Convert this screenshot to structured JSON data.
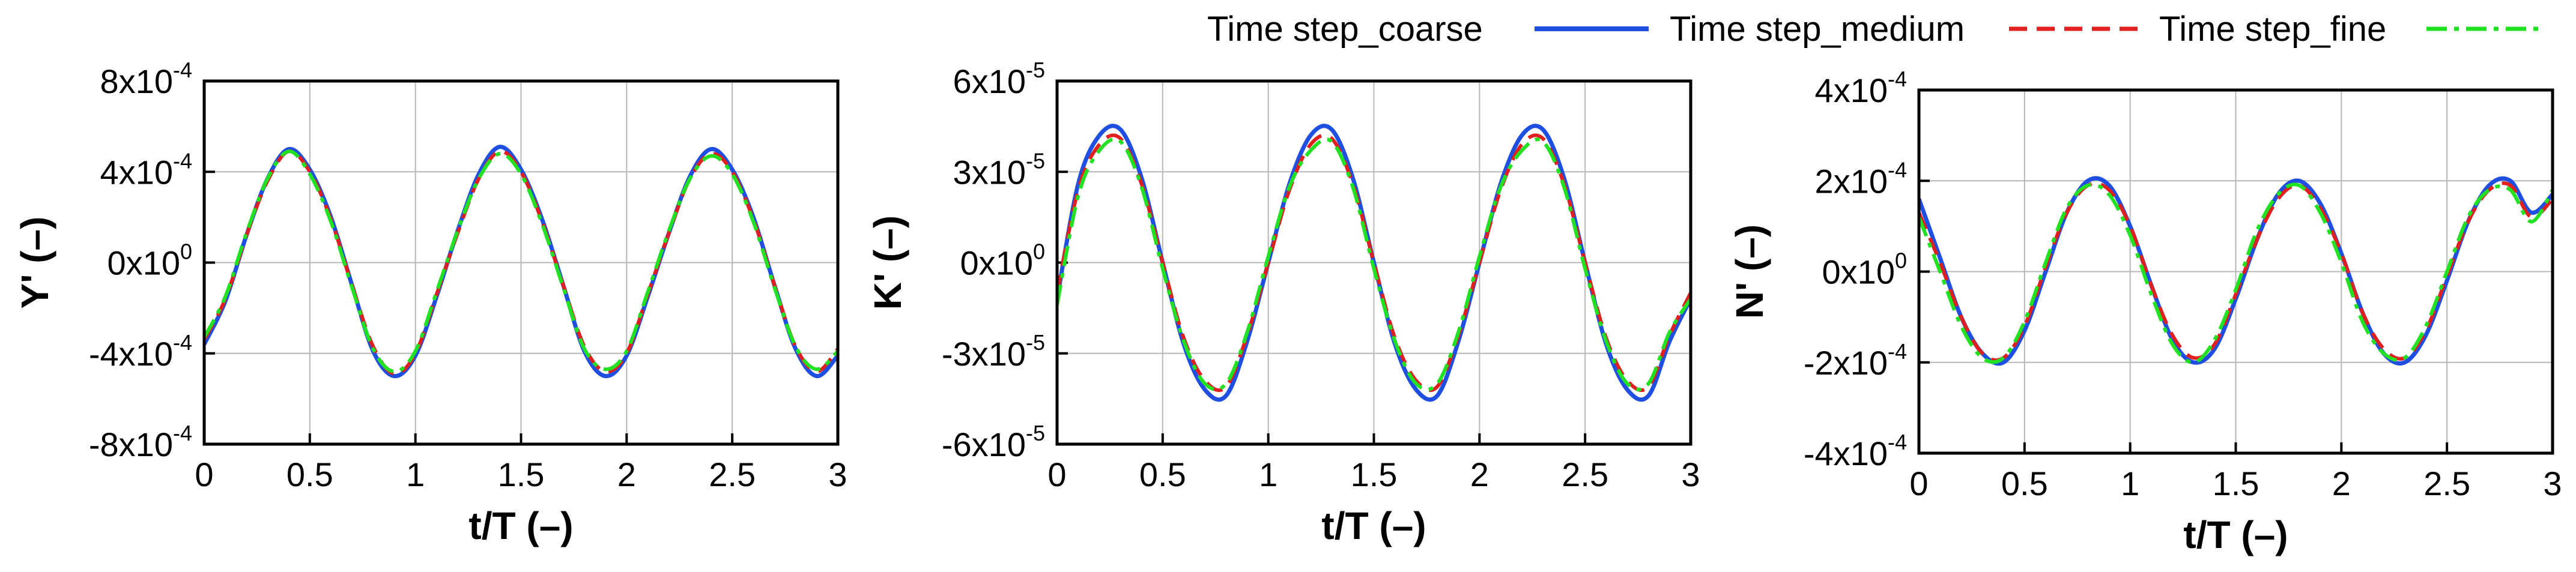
{
  "legend": {
    "placement": "top-right",
    "entries": [
      {
        "name": "Time step_coarse",
        "color": "#1f4fe0",
        "dash": "solid"
      },
      {
        "name": "Time step_medium",
        "color": "#e01f1f",
        "dash": "dashed"
      },
      {
        "name": "Time step_fine",
        "color": "#22e022",
        "dash": "dashdot"
      }
    ]
  },
  "chart_data": [
    {
      "type": "line",
      "xlabel": "t/T (–)",
      "ylabel": "Y' (–)",
      "xlim": [
        0,
        3
      ],
      "ylim": [
        -0.0008,
        0.0008
      ],
      "grid": true,
      "x_ticks": [
        "0",
        "0.5",
        "1",
        "1.5",
        "2",
        "2.5",
        "3"
      ],
      "y_ticks": [
        {
          "mant": "-8x10",
          "exp": "-4"
        },
        {
          "mant": "-4x10",
          "exp": "-4"
        },
        {
          "mant": "0x10",
          "exp": "0"
        },
        {
          "mant": "4x10",
          "exp": "-4"
        },
        {
          "mant": "8x10",
          "exp": "-4"
        }
      ],
      "x": [
        0,
        0.1,
        0.2,
        0.3,
        0.4,
        0.5,
        0.6,
        0.7,
        0.8,
        0.9,
        1.0,
        1.1,
        1.2,
        1.3,
        1.4,
        1.5,
        1.6,
        1.7,
        1.8,
        1.9,
        2.0,
        2.1,
        2.2,
        2.3,
        2.4,
        2.5,
        2.6,
        2.7,
        2.8,
        2.9,
        3.0
      ],
      "series": [
        {
          "name": "Time step_coarse",
          "values": [
            -0.00036,
            -0.00017,
            0.00012,
            0.00037,
            0.0005,
            0.00041,
            0.0002,
            -0.0001,
            -0.00039,
            -0.0005,
            -0.00041,
            -0.00015,
            0.00014,
            0.00039,
            0.00051,
            0.00041,
            0.00019,
            -0.0001,
            -0.00039,
            -0.0005,
            -0.00041,
            -0.00015,
            0.00013,
            0.00038,
            0.0005,
            0.00041,
            0.0002,
            -0.0001,
            -0.00038,
            -0.0005,
            -0.00041
          ]
        },
        {
          "name": "Time step_medium",
          "values": [
            -0.00034,
            -0.00016,
            0.00012,
            0.00036,
            0.00049,
            0.0004,
            0.00019,
            -0.0001,
            -0.00037,
            -0.00049,
            -0.0004,
            -0.00014,
            0.00013,
            0.00037,
            0.00049,
            0.0004,
            0.00018,
            -0.0001,
            -0.00037,
            -0.00048,
            -0.0004,
            -0.00014,
            0.00013,
            0.00037,
            0.00048,
            0.0004,
            0.00019,
            -0.0001,
            -0.00037,
            -0.00048,
            -0.00038
          ]
        },
        {
          "name": "Time step_fine",
          "values": [
            -0.00033,
            -0.00015,
            0.00013,
            0.00037,
            0.00049,
            0.00039,
            0.00018,
            -0.00011,
            -0.00038,
            -0.00048,
            -0.00039,
            -0.00013,
            0.00014,
            0.00037,
            0.00048,
            0.00039,
            0.00017,
            -0.00011,
            -0.00038,
            -0.00047,
            -0.00039,
            -0.00013,
            0.00014,
            0.00037,
            0.00047,
            0.00039,
            0.00018,
            -0.00011,
            -0.00037,
            -0.00047,
            -0.00039
          ]
        }
      ]
    },
    {
      "type": "line",
      "xlabel": "t/T (–)",
      "ylabel": "K' (–)",
      "xlim": [
        0,
        3
      ],
      "ylim": [
        -6e-05,
        6e-05
      ],
      "grid": true,
      "x_ticks": [
        "0",
        "0.5",
        "1",
        "1.5",
        "2",
        "2.5",
        "3"
      ],
      "y_ticks": [
        {
          "mant": "-6x10",
          "exp": "-5"
        },
        {
          "mant": "-3x10",
          "exp": "-5"
        },
        {
          "mant": "0x10",
          "exp": "0"
        },
        {
          "mant": "3x10",
          "exp": "-5"
        },
        {
          "mant": "6x10",
          "exp": "-5"
        }
      ],
      "x": [
        0,
        0.1,
        0.2,
        0.3,
        0.4,
        0.5,
        0.6,
        0.7,
        0.8,
        0.9,
        1.0,
        1.1,
        1.2,
        1.3,
        1.4,
        1.5,
        1.6,
        1.7,
        1.8,
        1.9,
        2.0,
        2.1,
        2.2,
        2.3,
        2.4,
        2.5,
        2.6,
        2.7,
        2.8,
        2.9,
        3.0
      ],
      "series": [
        {
          "name": "Time step_coarse",
          "values": [
            -1.2e-05,
            2.6e-05,
            4.2e-05,
            4.4e-05,
            2.8e-05,
            0.0,
            -2.7e-05,
            -4.2e-05,
            -4.4e-05,
            -2.6e-05,
            0.0,
            2.6e-05,
            4.2e-05,
            4.4e-05,
            2.8e-05,
            0.0,
            -2.7e-05,
            -4.2e-05,
            -4.4e-05,
            -2.6e-05,
            0.0,
            2.6e-05,
            4.2e-05,
            4.4e-05,
            2.8e-05,
            0.0,
            -2.7e-05,
            -4.2e-05,
            -4.4e-05,
            -2.6e-05,
            -1.2e-05
          ]
        },
        {
          "name": "Time step_medium",
          "values": [
            -1e-05,
            2.4e-05,
            3.9e-05,
            4.1e-05,
            2.6e-05,
            0.0,
            -2.5e-05,
            -3.9e-05,
            -4.1e-05,
            -2.4e-05,
            0.0,
            2.4e-05,
            3.9e-05,
            4.1e-05,
            2.6e-05,
            0.0,
            -2.5e-05,
            -3.9e-05,
            -4.1e-05,
            -2.4e-05,
            0.0,
            2.4e-05,
            3.9e-05,
            4.1e-05,
            2.6e-05,
            0.0,
            -2.5e-05,
            -3.9e-05,
            -4.1e-05,
            -2.4e-05,
            -1e-05
          ]
        },
        {
          "name": "Time step_fine",
          "values": [
            -1.4e-05,
            2.2e-05,
            3.7e-05,
            4e-05,
            2.5e-05,
            -2e-06,
            -2.6e-05,
            -4e-05,
            -4e-05,
            -2.3e-05,
            2e-06,
            2.5e-05,
            3.7e-05,
            4e-05,
            2.5e-05,
            -2e-06,
            -2.6e-05,
            -4e-05,
            -4e-05,
            -2.3e-05,
            2e-06,
            2.5e-05,
            3.7e-05,
            4e-05,
            2.5e-05,
            -2e-06,
            -2.6e-05,
            -4e-05,
            -4e-05,
            -2.3e-05,
            -1.2e-05
          ]
        }
      ]
    },
    {
      "type": "line",
      "xlabel": "t/T (–)",
      "ylabel": "N' (–)",
      "xlim": [
        0,
        3
      ],
      "ylim": [
        -0.0004,
        0.0004
      ],
      "grid": true,
      "x_ticks": [
        "0",
        "0.5",
        "1",
        "1.5",
        "2",
        "2.5",
        "3"
      ],
      "y_ticks": [
        {
          "mant": "-4x10",
          "exp": "-4"
        },
        {
          "mant": "-2x10",
          "exp": "-4"
        },
        {
          "mant": "0x10",
          "exp": "0"
        },
        {
          "mant": "2x10",
          "exp": "-4"
        },
        {
          "mant": "4x10",
          "exp": "-4"
        }
      ],
      "x": [
        0,
        0.1,
        0.2,
        0.3,
        0.4,
        0.5,
        0.6,
        0.7,
        0.8,
        0.9,
        1.0,
        1.1,
        1.2,
        1.3,
        1.4,
        1.5,
        1.6,
        1.7,
        1.8,
        1.9,
        2.0,
        2.1,
        2.2,
        2.3,
        2.4,
        2.5,
        2.6,
        2.7,
        2.8,
        2.9,
        3.0
      ],
      "series": [
        {
          "name": "Time step_coarse",
          "values": [
            0.00016,
            3e-05,
            -0.0001,
            -0.00018,
            -0.0002,
            -0.00013,
            0.0,
            0.00013,
            0.0002,
            0.00019,
            0.0001,
            -3e-05,
            -0.00015,
            -0.0002,
            -0.00017,
            -6e-05,
            7e-05,
            0.00017,
            0.0002,
            0.00015,
            4e-05,
            -9e-05,
            -0.00018,
            -0.0002,
            -0.00014,
            -2e-05,
            0.00011,
            0.00019,
            0.0002,
            0.00013,
            0.00017
          ]
        },
        {
          "name": "Time step_medium",
          "values": [
            0.00013,
            2e-05,
            -0.0001,
            -0.00018,
            -0.00019,
            -0.00012,
            1e-05,
            0.00013,
            0.00019,
            0.00018,
            0.0001,
            -3e-05,
            -0.00014,
            -0.00019,
            -0.00016,
            -5e-05,
            7e-05,
            0.00016,
            0.00019,
            0.00014,
            4e-05,
            -9e-05,
            -0.00017,
            -0.00019,
            -0.00013,
            -1e-05,
            0.00011,
            0.00018,
            0.00019,
            0.00012,
            0.00016
          ]
        },
        {
          "name": "Time step_fine",
          "values": [
            0.00012,
            0.0,
            -0.00012,
            -0.00019,
            -0.00019,
            -0.00011,
            2e-05,
            0.00014,
            0.00019,
            0.00017,
            8e-05,
            -5e-05,
            -0.00016,
            -0.0002,
            -0.00015,
            -4e-05,
            9e-05,
            0.00017,
            0.00019,
            0.00013,
            2e-05,
            -0.00011,
            -0.00018,
            -0.00019,
            -0.00012,
            0.0,
            0.00012,
            0.00018,
            0.00018,
            0.00011,
            0.00018
          ]
        }
      ]
    }
  ]
}
